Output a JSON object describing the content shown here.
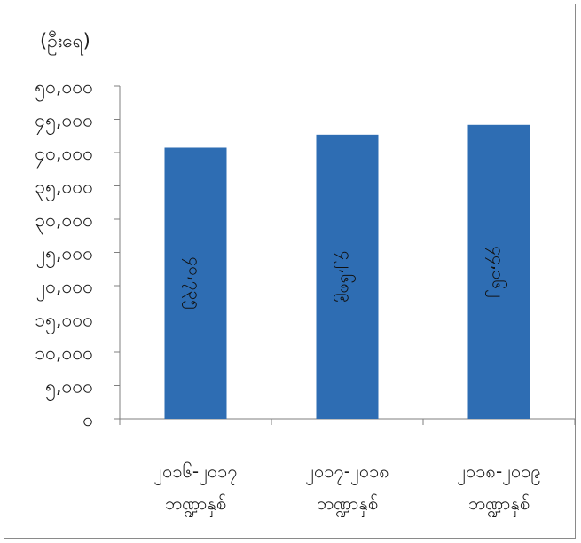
{
  "chart_data": {
    "type": "bar",
    "ylabel": "(ဦးရေ)",
    "categories": [
      [
        "၂၀၁၆-၂၀၁၇",
        "ဘဏ္ဍာနှစ်"
      ],
      [
        "၂၀၁၇-၂၀၁၈",
        "ဘဏ္ဍာနှစ်"
      ],
      [
        "၂၀၁၈-၂၀၁၉",
        "ဘဏ္ဍာနှစ်"
      ]
    ],
    "values": [
      40735,
      42689,
      44162
    ],
    "value_labels": [
      "၄၀,၇၃၅",
      "၄၂,၆၈၉",
      "၄၄,၁၆၂"
    ],
    "yticks": [
      0,
      5000,
      10000,
      15000,
      20000,
      25000,
      30000,
      35000,
      40000,
      45000,
      50000
    ],
    "ytick_labels": [
      "၀",
      "၅,၀၀၀",
      "၁၀,၀၀၀",
      "၁၅,၀၀၀",
      "၂၀,၀၀၀",
      "၂၅,၀၀၀",
      "၃၀,၀၀၀",
      "၃၅,၀၀၀",
      "၄၀,၀၀၀",
      "၄၅,၀၀၀",
      "၅၀,၀၀၀"
    ],
    "ylim": [
      0,
      50000
    ],
    "bar_color": "#2e6db3",
    "grid": false,
    "legend": "none"
  }
}
